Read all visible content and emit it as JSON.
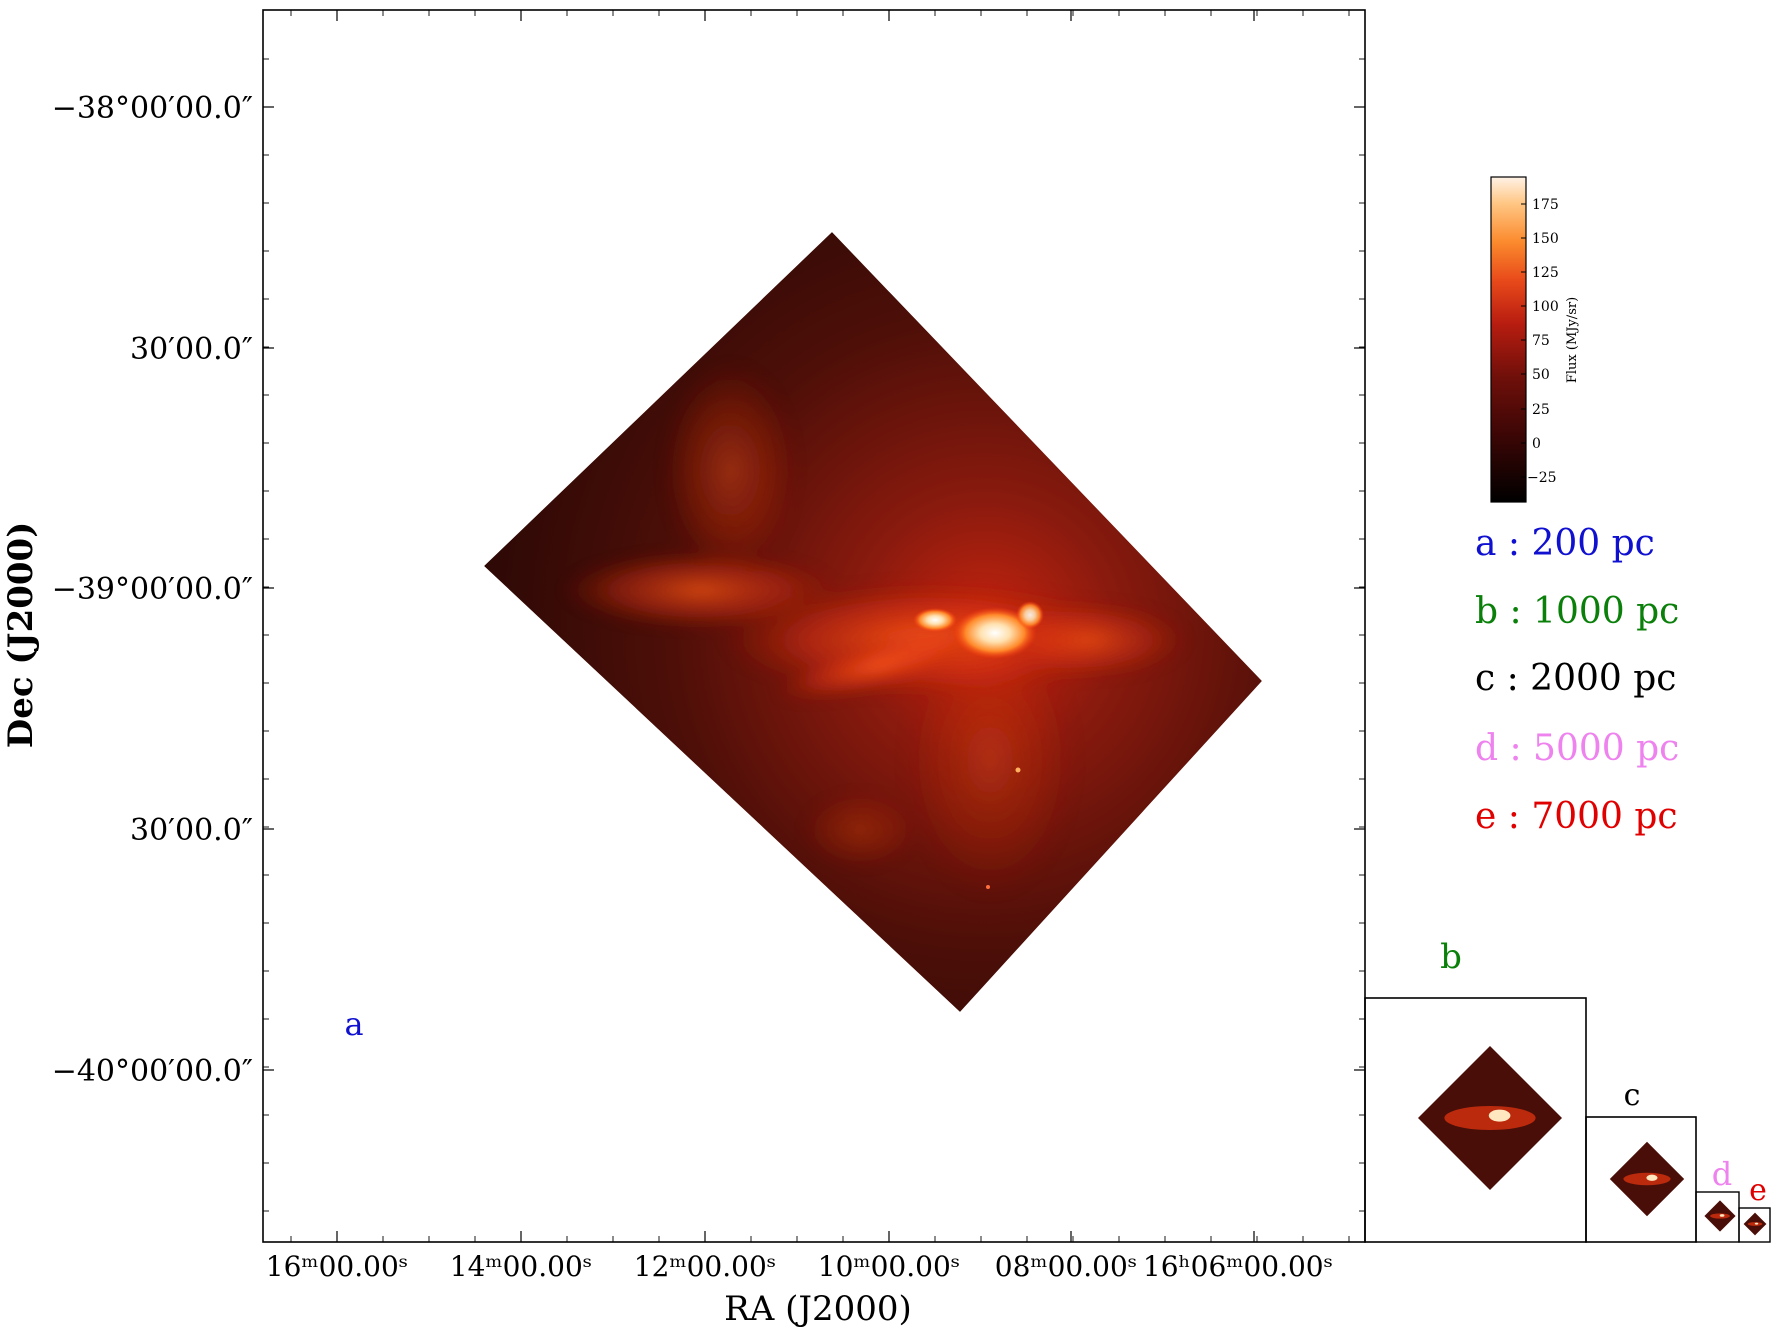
{
  "chart_data": {
    "type": "heatmap",
    "title": "",
    "xlabel": "RA (J2000)",
    "ylabel": "Dec (J2000)",
    "x_ticks": [
      "16ᵐ00.00ˢ",
      "14ᵐ00.00ˢ",
      "12ᵐ00.00ˢ",
      "10ᵐ00.00ˢ",
      "08ᵐ00.00ˢ",
      "16ʰ06ᵐ00.00ˢ"
    ],
    "y_ticks": [
      "−38°00′00.0″",
      "30′00.0″",
      "−39°00′00.0″",
      "30′00.0″",
      "−40°00′00.0″"
    ],
    "y_tick_values_deg": [
      -38.0,
      -38.5,
      -39.0,
      -39.5,
      -40.0
    ],
    "colorbar": {
      "label": "Flux (MJy/sr)",
      "range": [
        -40,
        195
      ],
      "ticks": [
        "175",
        "150",
        "125",
        "100",
        "75",
        "50",
        "25",
        "0",
        "−25"
      ],
      "tick_values": [
        175,
        150,
        125,
        100,
        75,
        50,
        25,
        0,
        -25
      ],
      "colors": [
        "#000000",
        "#3a0605",
        "#6e0f0a",
        "#b81d10",
        "#e8491a",
        "#fb8a2d",
        "#ffc785",
        "#fff2e6"
      ]
    },
    "legend": [
      {
        "text": "a : 200 pc",
        "color": "#1010d0"
      },
      {
        "text": "b : 1000 pc",
        "color": "#0a800a"
      },
      {
        "text": "c : 2000 pc",
        "color": "#000000"
      },
      {
        "text": "d : 5000 pc",
        "color": "#ee82ee"
      },
      {
        "text": "e : 7000 pc",
        "color": "#e00000"
      }
    ],
    "panel_letters": [
      {
        "text": "a",
        "color": "#1010d0"
      },
      {
        "text": "b",
        "color": "#0a800a"
      },
      {
        "text": "c",
        "color": "#000000"
      },
      {
        "text": "d",
        "color": "#ee82ee"
      },
      {
        "text": "e",
        "color": "#e00000"
      }
    ]
  }
}
